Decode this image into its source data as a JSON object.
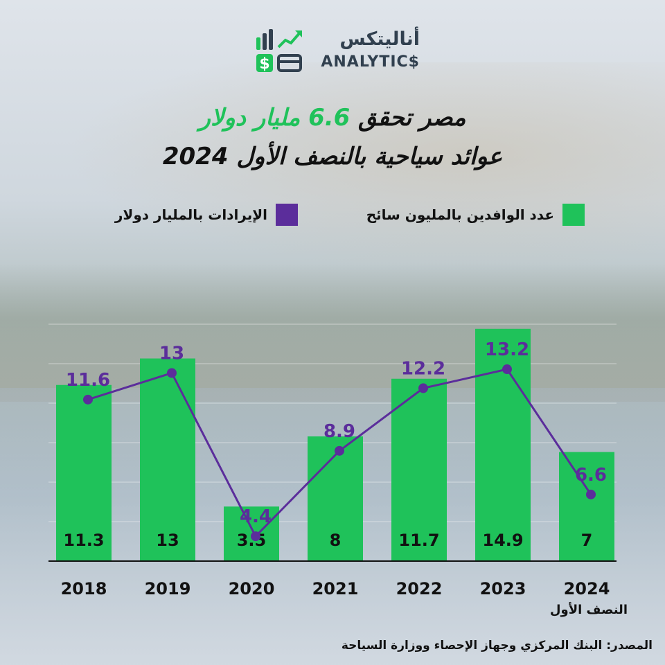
{
  "brand": {
    "name_ar": "أناليتكس",
    "name_en": "ANALYTIC$"
  },
  "title": {
    "line1_pre": "مصر تحقق ",
    "line1_highlight": "6.6 مليار دولار",
    "line2": "عوائد سياحية بالنصف الأول 2024"
  },
  "legend": {
    "arrivals": "عدد الوافدين بالمليون سائح",
    "revenue": "الإيرادات بالمليار دولار"
  },
  "note": "النصف الأول",
  "source": "المصدر: البنك المركزي وجهاز الإحصاء ووزارة السياحة",
  "colors": {
    "arrivals": "#1fc25a",
    "revenue": "#5b2d9b",
    "brand_dark": "#31404f"
  },
  "chart_data": {
    "type": "bar",
    "categories": [
      "2018",
      "2019",
      "2020",
      "2021",
      "2022",
      "2023",
      "2024"
    ],
    "series": [
      {
        "name": "عدد الوافدين بالمليون سائح",
        "type": "bar",
        "values": [
          11.3,
          13,
          3.5,
          8,
          11.7,
          14.9,
          7
        ]
      },
      {
        "name": "الإيرادات بالمليار دولار",
        "type": "line",
        "values": [
          11.6,
          13,
          4.4,
          8.9,
          12.2,
          13.2,
          6.6
        ]
      }
    ],
    "xlabel": "",
    "ylabel": "",
    "grid": true,
    "legend_position": "top"
  }
}
